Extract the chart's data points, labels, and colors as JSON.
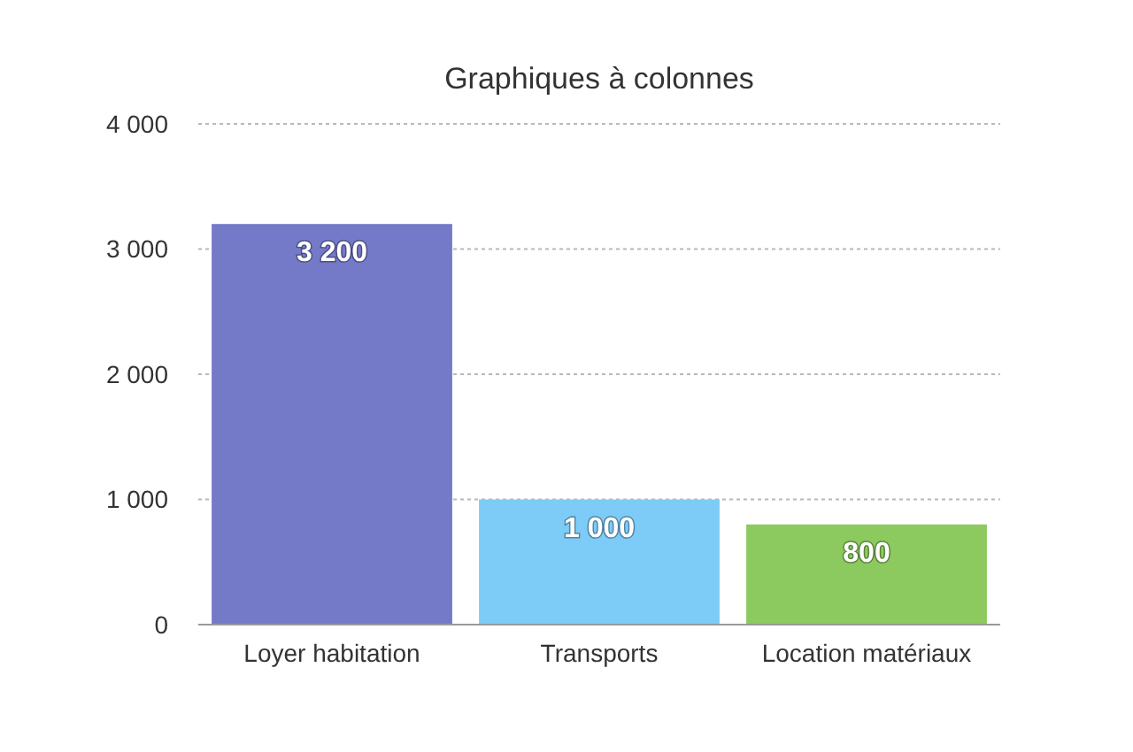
{
  "chart_data": {
    "type": "bar",
    "title": "Graphiques à colonnes",
    "categories": [
      "Loyer habitation",
      "Transports",
      "Location matériaux"
    ],
    "values": [
      3200,
      1000,
      800
    ],
    "colors": [
      "#7479c8",
      "#7dcbf7",
      "#8cc95e"
    ],
    "value_labels": [
      "3 200",
      "1 000",
      "800"
    ],
    "ylim": [
      0,
      4000
    ],
    "yticks": [
      {
        "value": 0,
        "label": "0"
      },
      {
        "value": 1000,
        "label": "1 000"
      },
      {
        "value": 2000,
        "label": "2 000"
      },
      {
        "value": 3000,
        "label": "3 000"
      },
      {
        "value": 4000,
        "label": "4 000"
      }
    ],
    "grid": "y"
  }
}
